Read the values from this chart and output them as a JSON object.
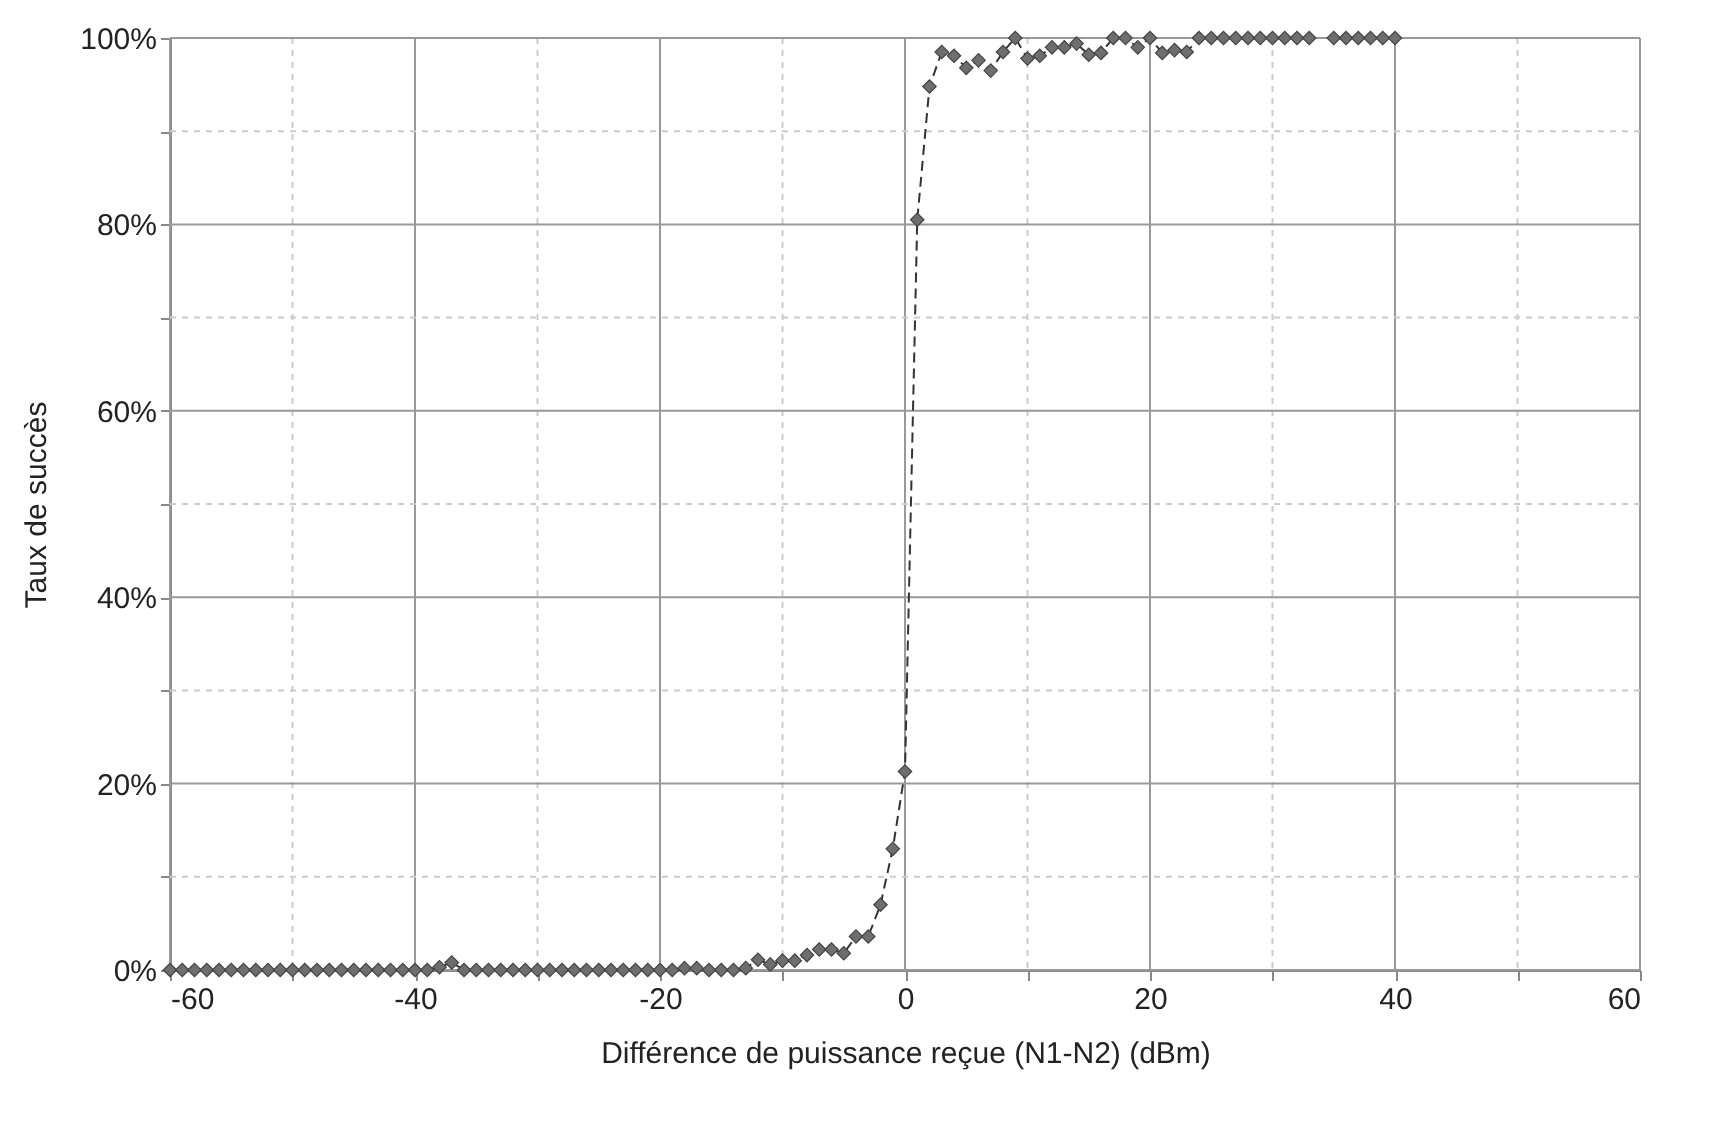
{
  "chart_data": {
    "type": "line",
    "xlabel": "Différence de puissance reçue (N1-N2) (dBm)",
    "ylabel": "Taux de succès",
    "x": [
      -60,
      -59,
      -58,
      -57,
      -56,
      -55,
      -54,
      -53,
      -52,
      -51,
      -50,
      -49,
      -48,
      -47,
      -46,
      -45,
      -44,
      -43,
      -42,
      -41,
      -40,
      -39,
      -38,
      -37,
      -36,
      -35,
      -34,
      -33,
      -32,
      -31,
      -30,
      -29,
      -28,
      -27,
      -26,
      -25,
      -24,
      -23,
      -22,
      -21,
      -20,
      -19,
      -18,
      -17,
      -16,
      -15,
      -14,
      -13,
      -12,
      -11,
      -10,
      -9,
      -8,
      -7,
      -6,
      -5,
      -4,
      -3,
      -2,
      -1,
      0,
      1,
      2,
      3,
      4,
      5,
      6,
      7,
      8,
      9,
      10,
      11,
      12,
      13,
      14,
      15,
      16,
      17,
      18,
      19,
      20,
      21,
      22,
      23,
      24,
      25,
      26,
      27,
      28,
      29,
      30,
      31,
      32,
      33,
      34,
      35,
      36,
      37,
      38,
      39,
      40
    ],
    "series": [
      {
        "color": "#6e6e6e",
        "values": [
          0,
          0,
          0,
          0,
          0,
          0,
          0,
          0,
          0,
          0,
          0,
          0,
          0,
          0,
          0,
          0,
          0,
          0,
          0,
          0,
          0,
          0,
          0.3,
          0.8,
          0,
          0,
          0,
          0,
          0,
          0,
          0,
          0,
          0,
          0,
          0,
          0,
          0,
          0,
          0,
          0,
          0,
          0,
          0.2,
          0.2,
          0,
          0,
          0,
          0.2,
          1.1,
          0.6,
          1,
          1,
          1.6,
          2.2,
          2.2,
          1.8,
          3.6,
          3.6,
          7,
          13,
          21.3,
          80.5,
          94.8,
          98.5,
          98.1,
          96.8,
          97.6,
          96.5,
          98.5,
          100,
          97.8,
          98.1,
          99,
          99,
          99.4,
          98.2,
          98.4,
          100,
          100,
          99,
          100,
          98.4,
          98.7,
          98.5,
          100,
          100,
          100,
          100,
          100,
          100,
          100,
          100,
          100,
          100,
          null,
          100,
          100,
          100,
          100,
          100,
          100
        ]
      }
    ],
    "xlim": [
      -60,
      60
    ],
    "xticks": [
      -60,
      {
        "value": -50,
        "label": null
      },
      -40,
      {
        "value": -30,
        "label": null
      },
      -20,
      {
        "value": -10,
        "label": null
      },
      0,
      {
        "value": 10,
        "label": null
      },
      20,
      {
        "value": 30,
        "label": null
      },
      40,
      {
        "value": 50,
        "label": null
      },
      60
    ],
    "ylim": [
      0,
      100
    ],
    "yticks": [
      {
        "value": 0,
        "label": "0%"
      },
      {
        "value": 10,
        "label": null
      },
      {
        "value": 20,
        "label": "20%"
      },
      {
        "value": 30,
        "label": null
      },
      {
        "value": 40,
        "label": "40%"
      },
      {
        "value": 50,
        "label": null
      },
      {
        "value": 60,
        "label": "60%"
      },
      {
        "value": 70,
        "label": null
      },
      {
        "value": 80,
        "label": "80%"
      },
      {
        "value": 90,
        "label": null
      },
      {
        "value": 100,
        "label": "100%"
      }
    ],
    "grid": true,
    "marker": "diamond",
    "line_style": "dashed"
  }
}
